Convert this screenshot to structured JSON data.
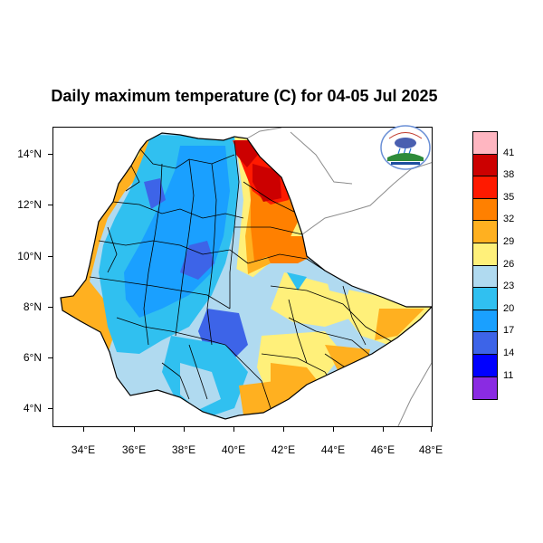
{
  "title": "Daily maximum temperature (C) for 04-05 Jul 2025",
  "x_ticks": [
    "34°E",
    "36°E",
    "38°E",
    "40°E",
    "42°E",
    "44°E",
    "46°E",
    "48°E"
  ],
  "y_ticks": [
    "14°N",
    "12°N",
    "10°N",
    "8°N",
    "6°N",
    "4°N"
  ],
  "legend": {
    "colors": [
      "#ffb6c1",
      "#cc0000",
      "#ff1a00",
      "#ff8000",
      "#ffb020",
      "#fff07a",
      "#b0daf0",
      "#30c0f0",
      "#1aa0ff",
      "#3d64e8",
      "#0000ff",
      "#8a2be2"
    ],
    "labels": [
      "41",
      "38",
      "35",
      "32",
      "29",
      "26",
      "23",
      "20",
      "17",
      "14",
      "11"
    ]
  },
  "colors": {
    "cool_blue": "#1aa0ff",
    "light_blue": "#30c0f0",
    "pale_blue": "#b0daf0",
    "yellow": "#fff07a",
    "orange": "#ffb020",
    "dark_orange": "#ff8000",
    "red": "#ff1a00",
    "dark_red": "#cc0000",
    "deep_blue": "#3d64e8"
  },
  "logo": {
    "icon": "ethiopian-meteorology-institute-logo"
  }
}
